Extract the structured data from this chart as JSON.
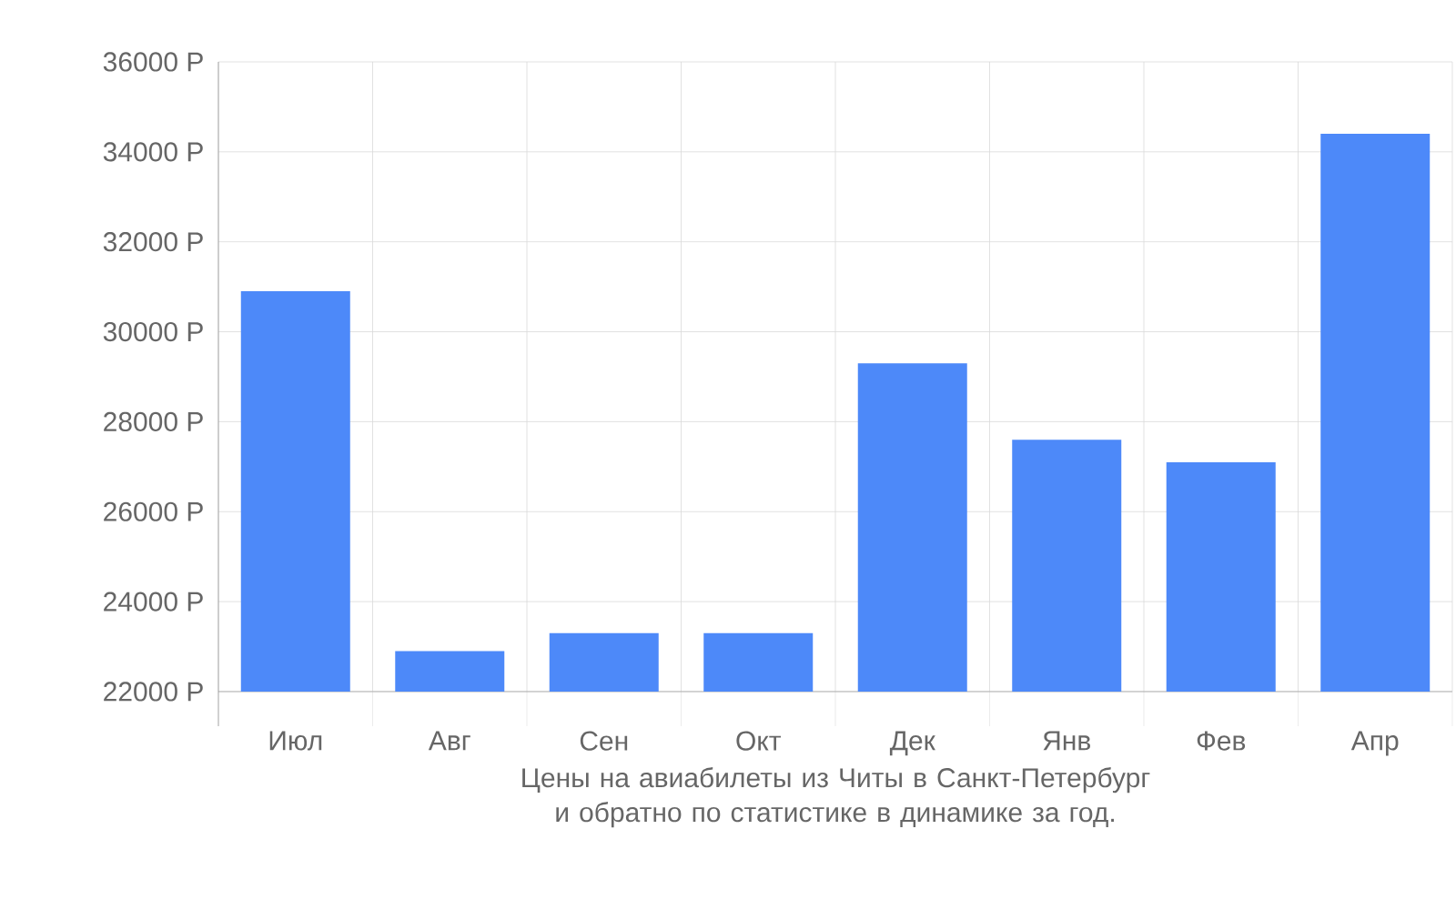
{
  "chart_data": {
    "type": "bar",
    "categories": [
      "Июл",
      "Авг",
      "Сен",
      "Окт",
      "Дек",
      "Янв",
      "Фев",
      "Апр"
    ],
    "values": [
      30900,
      22900,
      23300,
      23300,
      29300,
      27600,
      27100,
      34400
    ],
    "color": "#4d89f9",
    "ylim": [
      22000,
      36000
    ],
    "yticks": [
      {
        "value": 22000,
        "label": "22000 Р"
      },
      {
        "value": 24000,
        "label": "24000 Р"
      },
      {
        "value": 26000,
        "label": "26000 Р"
      },
      {
        "value": 28000,
        "label": "28000 Р"
      },
      {
        "value": 30000,
        "label": "30000 Р"
      },
      {
        "value": 32000,
        "label": "32000 Р"
      },
      {
        "value": 34000,
        "label": "34000 Р"
      },
      {
        "value": 36000,
        "label": "36000 Р"
      }
    ],
    "grid": true,
    "annotations": [
      "Цены на авиабилеты из Читы в Санкт-Петербург и обратно по статистике в динамике за год."
    ]
  }
}
